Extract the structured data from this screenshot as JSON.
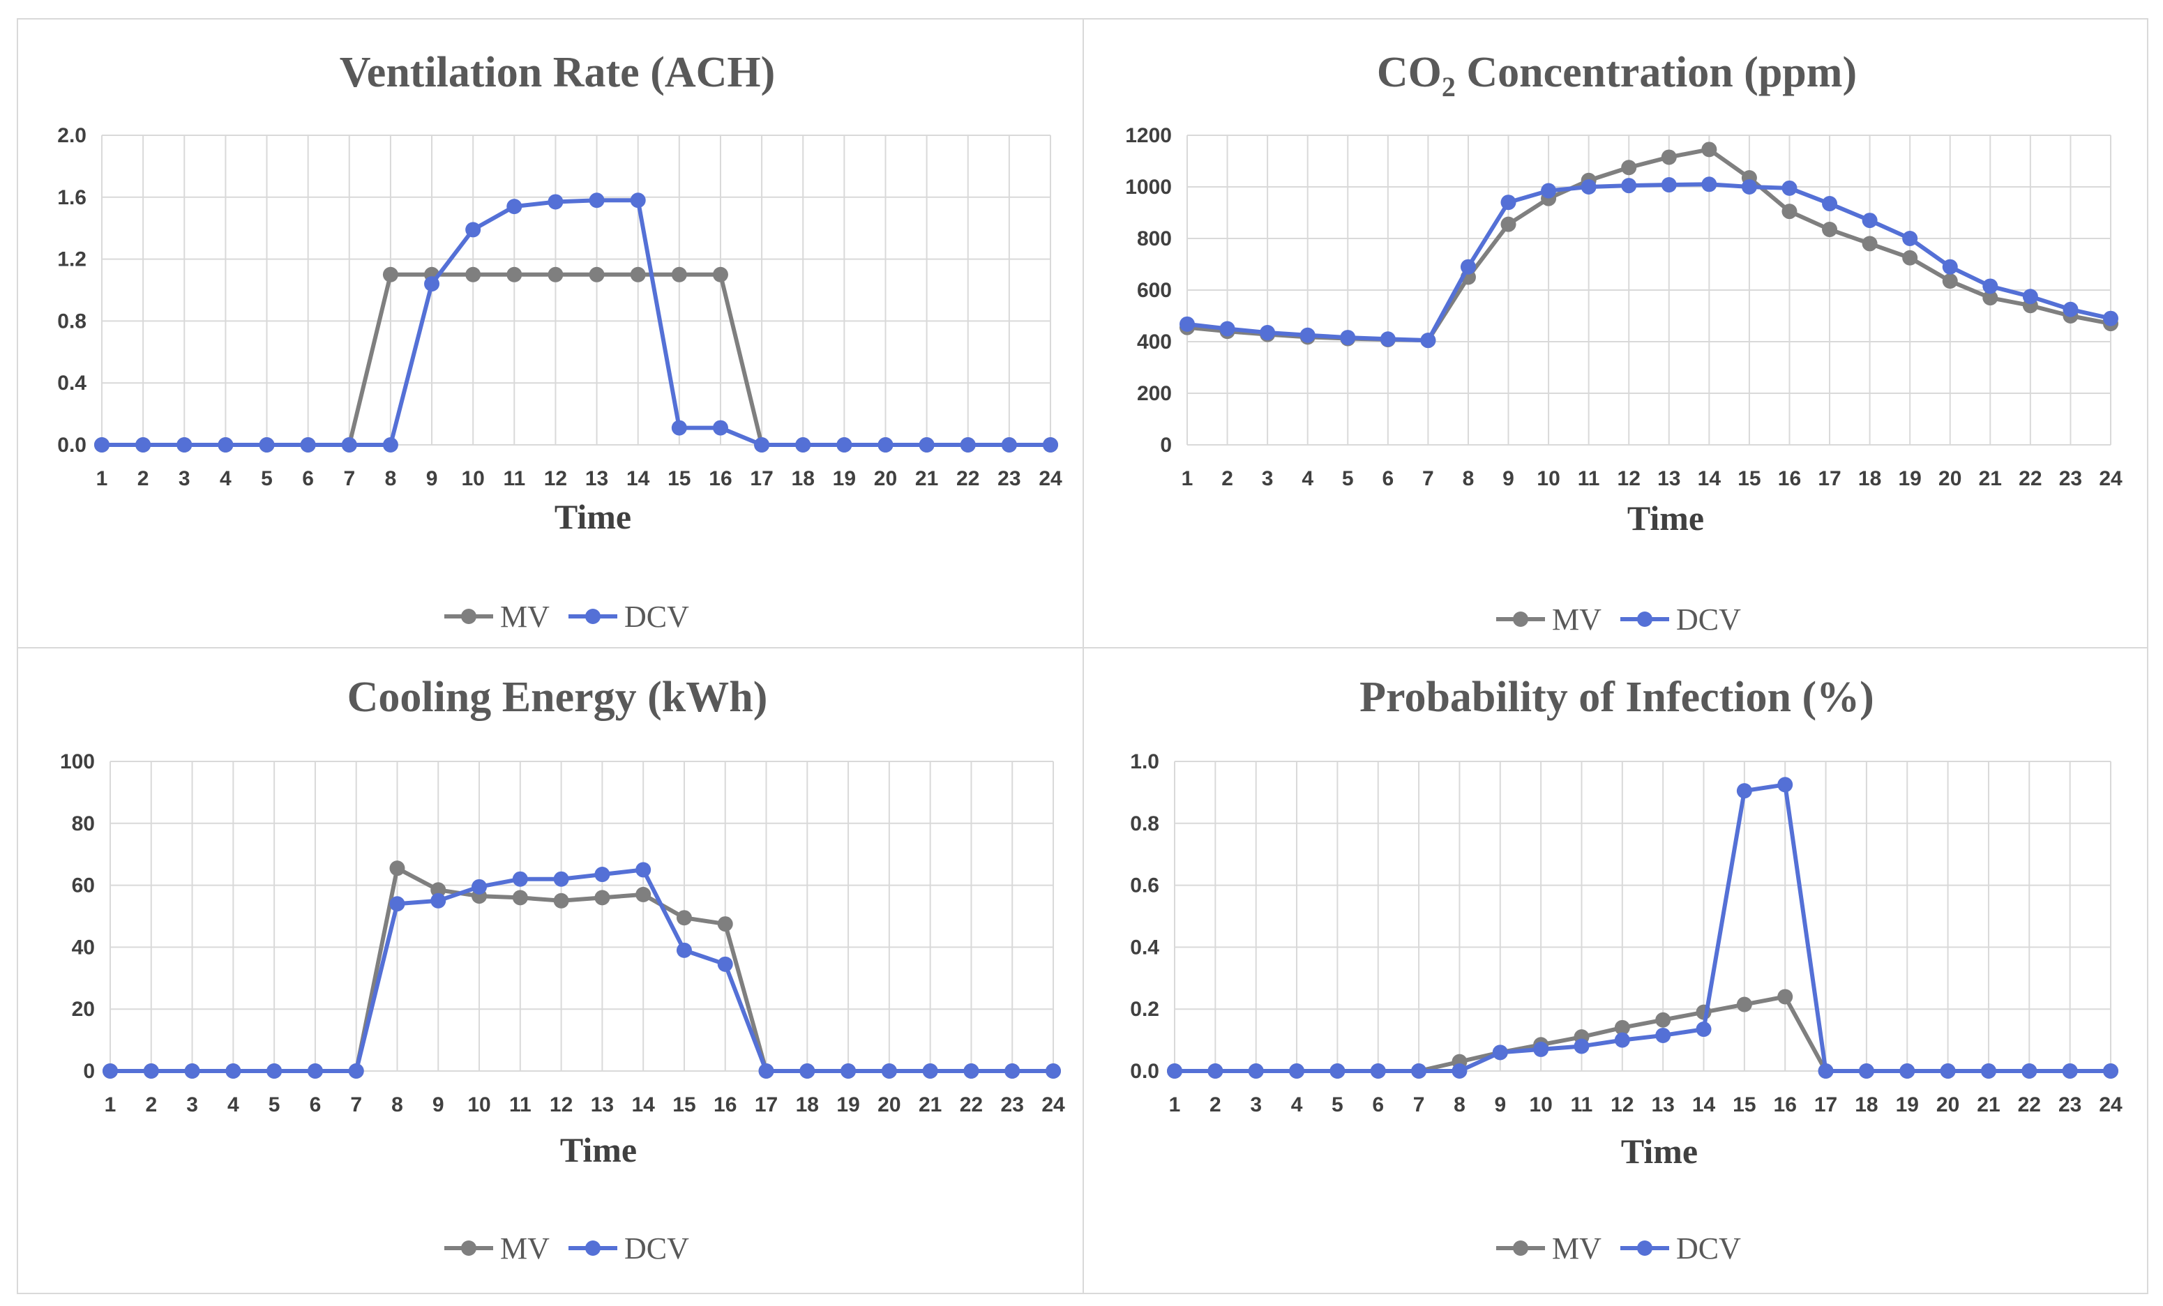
{
  "chart_data": [
    {
      "type": "line",
      "title": "Ventilation Rate (ACH)",
      "title_main": "Ventilation Rate (ACH)",
      "title_sub": "",
      "title_tail": "",
      "xlabel": "Time",
      "ylabel": "",
      "x": [
        1,
        2,
        3,
        4,
        5,
        6,
        7,
        8,
        9,
        10,
        11,
        12,
        13,
        14,
        15,
        16,
        17,
        18,
        19,
        20,
        21,
        22,
        23,
        24
      ],
      "ylim": [
        0,
        2.0
      ],
      "yticks": [
        0.0,
        0.4,
        0.8,
        1.2,
        1.6,
        2.0
      ],
      "ytick_labels": [
        "0.0",
        "0.4",
        "0.8",
        "1.2",
        "1.6",
        "2.0"
      ],
      "legend_position": "bottom",
      "grid": true,
      "series": [
        {
          "name": "MV",
          "color": "#7f7f7f",
          "values": [
            0,
            0,
            0,
            0,
            0,
            0,
            0,
            1.1,
            1.1,
            1.1,
            1.1,
            1.1,
            1.1,
            1.1,
            1.1,
            1.1,
            0,
            0,
            0,
            0,
            0,
            0,
            0,
            0
          ]
        },
        {
          "name": "DCV",
          "color": "#5470d6",
          "values": [
            0,
            0,
            0,
            0,
            0,
            0,
            0,
            0,
            1.04,
            1.39,
            1.54,
            1.57,
            1.58,
            1.58,
            0.11,
            0.11,
            0,
            0,
            0,
            0,
            0,
            0,
            0,
            0
          ]
        }
      ]
    },
    {
      "type": "line",
      "title": "CO2 Concentration (ppm)",
      "title_main": "CO",
      "title_sub": "2",
      "title_tail": " Concentration (ppm)",
      "xlabel": "Time",
      "ylabel": "",
      "x": [
        1,
        2,
        3,
        4,
        5,
        6,
        7,
        8,
        9,
        10,
        11,
        12,
        13,
        14,
        15,
        16,
        17,
        18,
        19,
        20,
        21,
        22,
        23,
        24
      ],
      "ylim": [
        0,
        1200
      ],
      "yticks": [
        0,
        200,
        400,
        600,
        800,
        1000,
        1200
      ],
      "ytick_labels": [
        "0",
        "200",
        "400",
        "600",
        "800",
        "1000",
        "1200"
      ],
      "legend_position": "bottom",
      "grid": true,
      "series": [
        {
          "name": "MV",
          "color": "#7f7f7f",
          "values": [
            455,
            440,
            428,
            418,
            412,
            408,
            405,
            650,
            855,
            955,
            1025,
            1075,
            1115,
            1145,
            1035,
            905,
            835,
            780,
            725,
            635,
            570,
            540,
            500,
            470
          ]
        },
        {
          "name": "DCV",
          "color": "#5470d6",
          "values": [
            468,
            450,
            435,
            425,
            416,
            410,
            405,
            690,
            940,
            985,
            1000,
            1005,
            1008,
            1010,
            1000,
            995,
            935,
            870,
            800,
            690,
            615,
            575,
            525,
            490
          ]
        }
      ]
    },
    {
      "type": "line",
      "title": "Cooling Energy (kWh)",
      "title_main": "Cooling Energy (kWh)",
      "title_sub": "",
      "title_tail": "",
      "xlabel": "Time",
      "ylabel": "",
      "x": [
        1,
        2,
        3,
        4,
        5,
        6,
        7,
        8,
        9,
        10,
        11,
        12,
        13,
        14,
        15,
        16,
        17,
        18,
        19,
        20,
        21,
        22,
        23,
        24
      ],
      "ylim": [
        0,
        100
      ],
      "yticks": [
        0,
        20,
        40,
        60,
        80,
        100
      ],
      "ytick_labels": [
        "0",
        "20",
        "40",
        "60",
        "80",
        "100"
      ],
      "legend_position": "bottom",
      "grid": true,
      "series": [
        {
          "name": "MV",
          "color": "#7f7f7f",
          "values": [
            0,
            0,
            0,
            0,
            0,
            0,
            0,
            65.5,
            58.5,
            56.5,
            56,
            55,
            56,
            57,
            49.5,
            47.5,
            0,
            0,
            0,
            0,
            0,
            0,
            0,
            0
          ]
        },
        {
          "name": "DCV",
          "color": "#5470d6",
          "values": [
            0,
            0,
            0,
            0,
            0,
            0,
            0,
            54,
            55,
            59.5,
            62,
            62,
            63.5,
            65,
            39,
            34.5,
            0,
            0,
            0,
            0,
            0,
            0,
            0,
            0
          ]
        }
      ]
    },
    {
      "type": "line",
      "title": "Probability of Infection (%)",
      "title_main": "Probability of Infection (%)",
      "title_sub": "",
      "title_tail": "",
      "xlabel": "Time",
      "ylabel": "",
      "x": [
        1,
        2,
        3,
        4,
        5,
        6,
        7,
        8,
        9,
        10,
        11,
        12,
        13,
        14,
        15,
        16,
        17,
        18,
        19,
        20,
        21,
        22,
        23,
        24
      ],
      "ylim": [
        0,
        1.0
      ],
      "yticks": [
        0.0,
        0.2,
        0.4,
        0.6,
        0.8,
        1.0
      ],
      "ytick_labels": [
        "0.0",
        "0.2",
        "0.4",
        "0.6",
        "0.8",
        "1.0"
      ],
      "legend_position": "bottom",
      "grid": true,
      "series": [
        {
          "name": "MV",
          "color": "#7f7f7f",
          "values": [
            0,
            0,
            0,
            0,
            0,
            0,
            0,
            0.03,
            0.06,
            0.085,
            0.11,
            0.14,
            0.165,
            0.19,
            0.215,
            0.24,
            0,
            0,
            0,
            0,
            0,
            0,
            0,
            0
          ]
        },
        {
          "name": "DCV",
          "color": "#5470d6",
          "values": [
            0,
            0,
            0,
            0,
            0,
            0,
            0,
            0,
            0.06,
            0.07,
            0.08,
            0.1,
            0.115,
            0.135,
            0.905,
            0.925,
            0,
            0,
            0,
            0,
            0,
            0,
            0,
            0
          ]
        }
      ]
    }
  ]
}
